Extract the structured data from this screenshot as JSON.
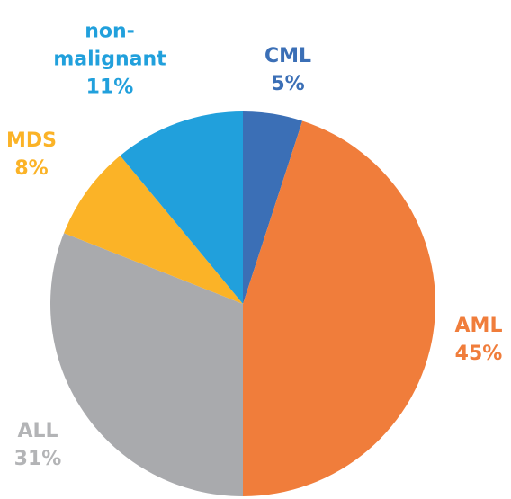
{
  "chart_data": {
    "type": "pie",
    "categories": [
      "CML",
      "AML",
      "ALL",
      "MDS",
      "non-malignant"
    ],
    "values": [
      5,
      45,
      31,
      8,
      11
    ],
    "value_labels": [
      "5%",
      "45%",
      "31%",
      "8%",
      "11%"
    ],
    "colors": [
      "#3b6fb6",
      "#f07d3b",
      "#a9aaad",
      "#fbb327",
      "#21a0dc"
    ]
  }
}
